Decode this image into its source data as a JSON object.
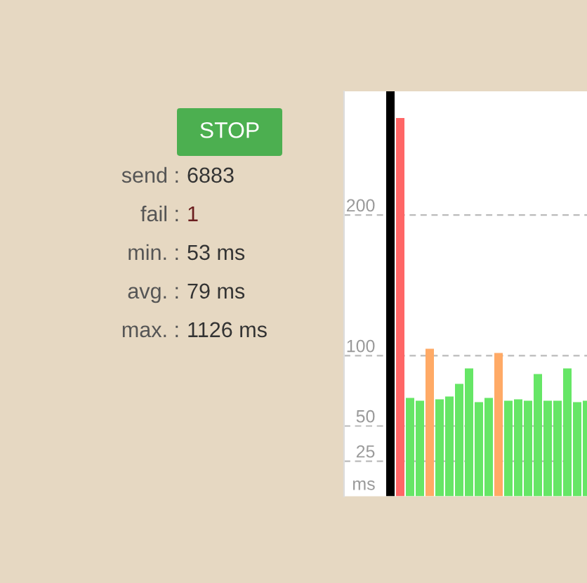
{
  "chart_data": {
    "type": "bar",
    "categories": [
      null,
      null,
      null,
      null,
      null,
      null,
      null,
      null,
      null,
      null,
      null,
      null,
      null,
      null,
      null,
      null,
      null,
      null,
      null,
      null,
      null
    ],
    "values": [
      288,
      269,
      70,
      68,
      105,
      69,
      71,
      80,
      91,
      67,
      70,
      102,
      68,
      69,
      68,
      87,
      68,
      68,
      91,
      67,
      68
    ],
    "colors": [
      "#000000",
      "#ff6666",
      "#66e666",
      "#66e666",
      "#ffaa66",
      "#66e666",
      "#66e666",
      "#66e666",
      "#66e666",
      "#66e666",
      "#66e666",
      "#ffaa66",
      "#66e666",
      "#66e666",
      "#66e666",
      "#66e666",
      "#66e666",
      "#66e666",
      "#66e666",
      "#66e666",
      "#66e666"
    ],
    "ylabel": "ms",
    "ylim": [
      0,
      288
    ],
    "yticks": [
      25,
      50,
      100,
      200
    ],
    "grid": "y",
    "annotations": [
      "STOP",
      "send : 6883",
      "fail : 1",
      "min. : 53 ms",
      "avg. : 79 ms",
      "max. : 1126 ms"
    ]
  }
}
